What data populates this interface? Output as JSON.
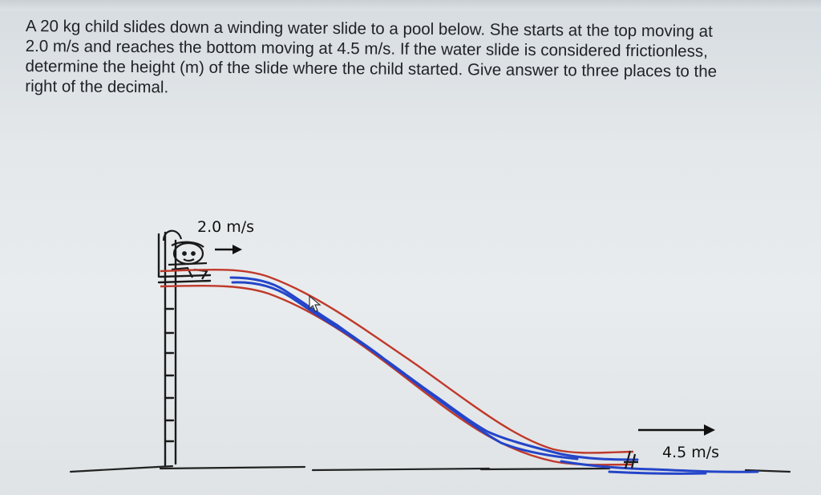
{
  "problem": {
    "lines": [
      "A 20 kg child slides down a winding water slide to a pool below. She starts at the top moving at",
      "2.0 m/s and reaches the bottom moving at 4.5 m/s. If the water slide is considered frictionless,",
      "determine the height (m) of the slide where the child started.  Give answer to three places to the",
      "right of the decimal."
    ]
  },
  "diagram": {
    "start_velocity_label": "2.0 m/s",
    "end_velocity_label": "4.5 m/s",
    "colors": {
      "slide_rail": "#c0392b",
      "water": "#2445c9",
      "ink": "#111111"
    }
  }
}
